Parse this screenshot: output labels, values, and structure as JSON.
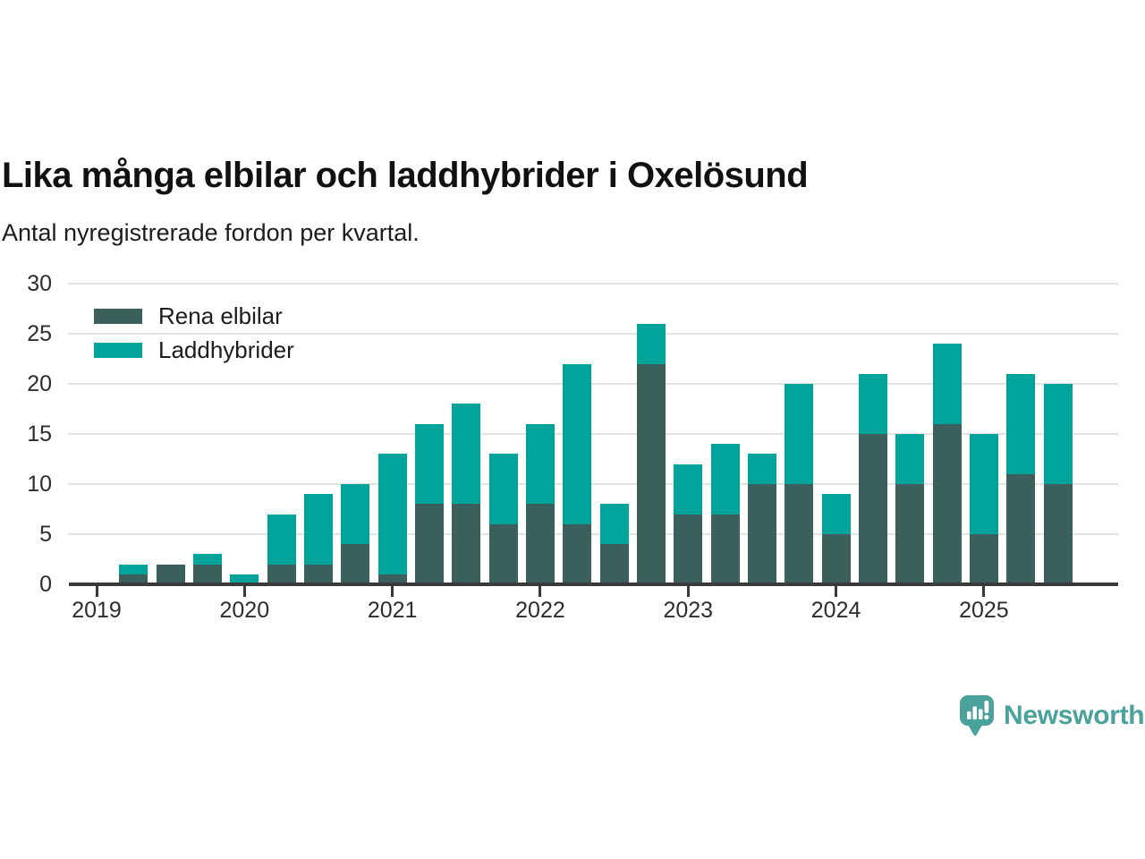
{
  "header": {
    "title": "Lika många elbilar och laddhybrider i Oxelösund",
    "subtitle": "Antal nyregistrerade fordon per kvartal."
  },
  "chart_data": {
    "type": "bar",
    "stacked": true,
    "title": "Lika många elbilar och laddhybrider i Oxelösund",
    "subtitle": "Antal nyregistrerade fordon per kvartal.",
    "grid": true,
    "legend_position": "top-left",
    "ylim": [
      0,
      30
    ],
    "yticks": [
      0,
      5,
      10,
      15,
      20,
      25,
      30
    ],
    "year_ticks": [
      "2019",
      "2020",
      "2021",
      "2022",
      "2023",
      "2024",
      "2025"
    ],
    "categories": [
      "2019 Q2",
      "2019 Q3",
      "2019 Q4",
      "2020 Q1",
      "2020 Q2",
      "2020 Q3",
      "2020 Q4",
      "2021 Q1",
      "2021 Q2",
      "2021 Q3",
      "2021 Q4",
      "2022 Q1",
      "2022 Q2",
      "2022 Q3",
      "2022 Q4",
      "2023 Q1",
      "2023 Q2",
      "2023 Q3",
      "2023 Q4",
      "2024 Q1",
      "2024 Q2",
      "2024 Q3",
      "2024 Q4",
      "2025 Q1",
      "2025 Q2",
      "2025 Q3"
    ],
    "series": [
      {
        "name": "Rena elbilar",
        "color": "#3b5f5a",
        "values": [
          1,
          2,
          2,
          0,
          2,
          2,
          4,
          1,
          8,
          8,
          6,
          8,
          6,
          4,
          22,
          7,
          7,
          10,
          10,
          5,
          15,
          10,
          16,
          5,
          11,
          10
        ]
      },
      {
        "name": "Laddhybrider",
        "color": "#00a49b",
        "values": [
          1,
          0,
          1,
          1,
          5,
          7,
          6,
          12,
          8,
          10,
          7,
          8,
          16,
          4,
          4,
          5,
          7,
          3,
          10,
          4,
          6,
          5,
          8,
          10,
          10,
          10
        ]
      }
    ],
    "totals": [
      2,
      2,
      3,
      1,
      7,
      9,
      10,
      13,
      16,
      18,
      13,
      16,
      22,
      8,
      26,
      12,
      14,
      13,
      20,
      9,
      21,
      15,
      24,
      15,
      21,
      20
    ]
  },
  "colors": {
    "grid": "#e2e2e2",
    "axis": "#3a3a3a"
  },
  "footer": {
    "brand": "Newsworthy",
    "brand_color": "#4ba19b"
  }
}
